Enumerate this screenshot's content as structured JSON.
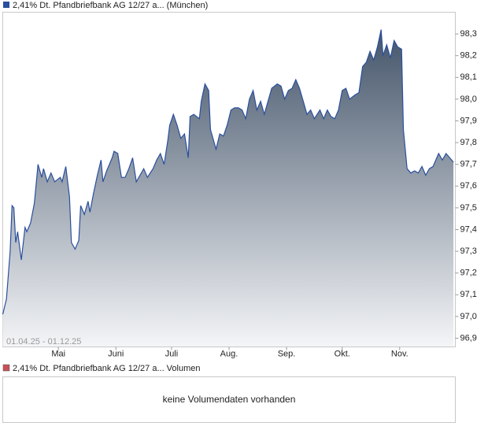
{
  "chart_data": {
    "type": "area",
    "series": [
      {
        "name": "2,41% Dt. Pfandbriefbank AG 12/27 a... (München)",
        "color": "#2a4f9e",
        "x": [
          0,
          2,
          4,
          5,
          6,
          7,
          8,
          10,
          12,
          13,
          15,
          17,
          19,
          21,
          22,
          24,
          26,
          28,
          31,
          32,
          34,
          36,
          37,
          39,
          41,
          42,
          44,
          46,
          47,
          49,
          51,
          53,
          54,
          56,
          59,
          60,
          62,
          64,
          66,
          68,
          70,
          72,
          74,
          76,
          78,
          81,
          83,
          85,
          87,
          89,
          90,
          92,
          94,
          96,
          98,
          100,
          101,
          103,
          106,
          107,
          109,
          111,
          112,
          115,
          117,
          119,
          121,
          123,
          125,
          127,
          129,
          131,
          133,
          135,
          137,
          139,
          141,
          143,
          145,
          148,
          150,
          152,
          154,
          156,
          158,
          160,
          162,
          164,
          166,
          168,
          171,
          173,
          175,
          177,
          179,
          181,
          183,
          185,
          187,
          190,
          192,
          194,
          196,
          198,
          200,
          202,
          204,
          205,
          207,
          209,
          211,
          213,
          215,
          216,
          218,
          220,
          222,
          224,
          226,
          228,
          230,
          232,
          235,
          237,
          239,
          241,
          243
        ],
        "values": [
          97.01,
          97.08,
          97.3,
          97.51,
          97.5,
          97.34,
          97.39,
          97.26,
          97.41,
          97.39,
          97.43,
          97.52,
          97.7,
          97.64,
          97.68,
          97.62,
          97.66,
          97.62,
          97.64,
          97.62,
          97.69,
          97.55,
          97.34,
          97.31,
          97.35,
          97.51,
          97.47,
          97.53,
          97.48,
          97.57,
          97.65,
          97.72,
          97.62,
          97.67,
          97.73,
          97.76,
          97.75,
          97.64,
          97.64,
          97.68,
          97.73,
          97.62,
          97.65,
          97.68,
          97.64,
          97.68,
          97.72,
          97.75,
          97.7,
          97.81,
          97.88,
          97.93,
          97.88,
          97.82,
          97.84,
          97.73,
          97.92,
          97.93,
          97.91,
          97.99,
          98.07,
          98.04,
          97.86,
          97.77,
          97.84,
          97.83,
          97.88,
          97.95,
          97.96,
          97.96,
          97.95,
          97.91,
          98.0,
          98.04,
          97.95,
          97.99,
          97.93,
          97.99,
          98.05,
          98.07,
          98.06,
          98.0,
          98.04,
          98.05,
          98.09,
          98.05,
          97.99,
          97.93,
          97.95,
          97.91,
          97.95,
          97.91,
          97.95,
          97.92,
          97.91,
          97.95,
          98.04,
          98.05,
          98.0,
          98.02,
          98.03,
          98.15,
          98.17,
          98.22,
          98.18,
          98.24,
          98.32,
          98.2,
          98.25,
          98.19,
          98.27,
          98.24,
          98.23,
          97.86,
          97.68,
          97.66,
          97.67,
          97.66,
          97.69,
          97.65,
          97.68,
          97.69,
          97.75,
          97.72,
          97.75,
          97.73,
          97.71
        ]
      }
    ],
    "xlim": [
      0,
      244
    ],
    "xticks": [
      {
        "value": 30,
        "label": "Mai"
      },
      {
        "value": 61,
        "label": "Juni"
      },
      {
        "value": 91,
        "label": "Juli"
      },
      {
        "value": 122,
        "label": "Aug."
      },
      {
        "value": 153,
        "label": "Sep."
      },
      {
        "value": 183,
        "label": "Okt."
      },
      {
        "value": 214,
        "label": "Nov."
      }
    ],
    "ylim": [
      96.86,
      98.4
    ],
    "yticks": [
      {
        "value": 96.9,
        "label": "96,9"
      },
      {
        "value": 97.0,
        "label": "97,0"
      },
      {
        "value": 97.1,
        "label": "97,1"
      },
      {
        "value": 97.2,
        "label": "97,2"
      },
      {
        "value": 97.3,
        "label": "97,3"
      },
      {
        "value": 97.4,
        "label": "97,4"
      },
      {
        "value": 97.5,
        "label": "97,5"
      },
      {
        "value": 97.6,
        "label": "97,6"
      },
      {
        "value": 97.7,
        "label": "97,7"
      },
      {
        "value": 97.8,
        "label": "97,8"
      },
      {
        "value": 97.9,
        "label": "97,9"
      },
      {
        "value": 98.0,
        "label": "98,0"
      },
      {
        "value": 98.1,
        "label": "98,1"
      },
      {
        "value": 98.2,
        "label": "98,2"
      },
      {
        "value": 98.3,
        "label": "98,3"
      }
    ],
    "date_range": "01.04.25 - 01.12.25",
    "volume_legend": "2,41% Dt. Pfandbriefbank AG 12/27 a... Volumen",
    "volume_legend_color": "#c8505a",
    "volume_note": "keine Volumendaten vorhanden"
  }
}
